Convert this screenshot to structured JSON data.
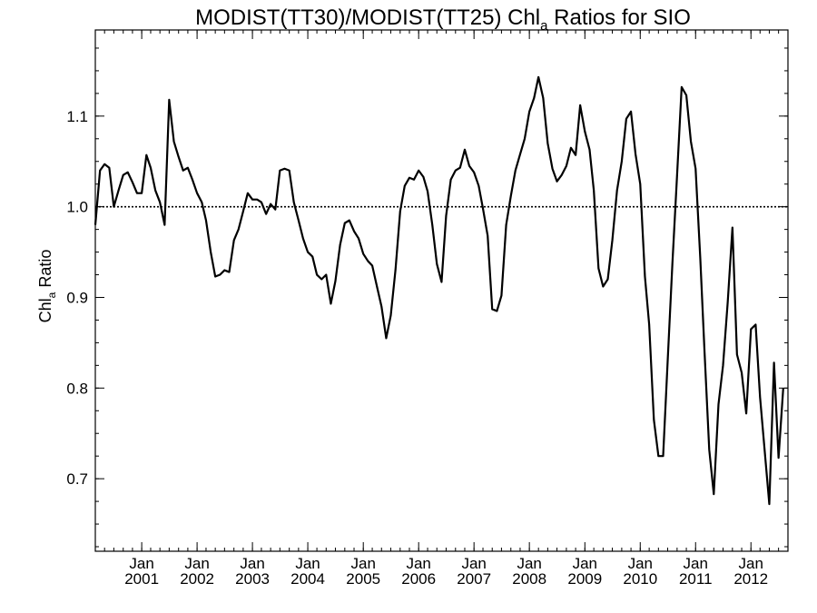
{
  "chart_data": {
    "type": "line",
    "title": {
      "before": "MODIST(TT30)/MODIST(TT25)  Chl",
      "subscript": "a",
      "after": " Ratios for SIO"
    },
    "ylabel": {
      "before": "Chl",
      "subscript": "a",
      "after": " Ratio"
    },
    "xlabel": "",
    "xlim": [
      "2000-03-01",
      "2012-09-01"
    ],
    "ylim": [
      0.62,
      1.195
    ],
    "yticks": [
      0.7,
      0.8,
      0.9,
      1.0,
      1.1
    ],
    "ytick_labels": [
      "0.7",
      "0.8",
      "0.9",
      "1.0",
      "1.1"
    ],
    "xticks": [
      {
        "month": "Jan",
        "year": "2001",
        "date": "2001-01-01"
      },
      {
        "month": "Jan",
        "year": "2002",
        "date": "2002-01-01"
      },
      {
        "month": "Jan",
        "year": "2003",
        "date": "2003-01-01"
      },
      {
        "month": "Jan",
        "year": "2004",
        "date": "2004-01-01"
      },
      {
        "month": "Jan",
        "year": "2005",
        "date": "2005-01-01"
      },
      {
        "month": "Jan",
        "year": "2006",
        "date": "2006-01-01"
      },
      {
        "month": "Jan",
        "year": "2007",
        "date": "2007-01-01"
      },
      {
        "month": "Jan",
        "year": "2008",
        "date": "2008-01-01"
      },
      {
        "month": "Jan",
        "year": "2009",
        "date": "2009-01-01"
      },
      {
        "month": "Jan",
        "year": "2010",
        "date": "2010-01-01"
      },
      {
        "month": "Jan",
        "year": "2011",
        "date": "2011-01-01"
      },
      {
        "month": "Jan",
        "year": "2012",
        "date": "2012-01-01"
      }
    ],
    "reference_line": {
      "y": 1.0,
      "style": "dotted"
    },
    "grid": false,
    "legend": "none",
    "series": [
      {
        "color": "#000000",
        "points": [
          [
            "2000-03-01",
            0.98
          ],
          [
            "2000-04-01",
            1.04
          ],
          [
            "2000-05-01",
            1.047
          ],
          [
            "2000-06-01",
            1.043
          ],
          [
            "2000-07-01",
            1.0
          ],
          [
            "2000-08-01",
            1.018
          ],
          [
            "2000-09-01",
            1.035
          ],
          [
            "2000-10-01",
            1.038
          ],
          [
            "2000-11-01",
            1.027
          ],
          [
            "2000-12-01",
            1.015
          ],
          [
            "2001-01-01",
            1.015
          ],
          [
            "2001-02-01",
            1.057
          ],
          [
            "2001-03-01",
            1.043
          ],
          [
            "2001-04-01",
            1.018
          ],
          [
            "2001-05-01",
            1.005
          ],
          [
            "2001-06-01",
            0.98
          ],
          [
            "2001-07-01",
            1.118
          ],
          [
            "2001-08-01",
            1.072
          ],
          [
            "2001-09-01",
            1.055
          ],
          [
            "2001-10-01",
            1.04
          ],
          [
            "2001-11-01",
            1.043
          ],
          [
            "2001-12-01",
            1.03
          ],
          [
            "2002-01-01",
            1.015
          ],
          [
            "2002-02-01",
            1.005
          ],
          [
            "2002-03-01",
            0.985
          ],
          [
            "2002-04-01",
            0.95
          ],
          [
            "2002-05-01",
            0.923
          ],
          [
            "2002-06-01",
            0.925
          ],
          [
            "2002-07-01",
            0.93
          ],
          [
            "2002-08-01",
            0.928
          ],
          [
            "2002-09-01",
            0.963
          ],
          [
            "2002-10-01",
            0.975
          ],
          [
            "2002-11-01",
            0.995
          ],
          [
            "2002-12-01",
            1.015
          ],
          [
            "2003-01-01",
            1.008
          ],
          [
            "2003-02-01",
            1.008
          ],
          [
            "2003-03-01",
            1.005
          ],
          [
            "2003-04-01",
            0.992
          ],
          [
            "2003-05-01",
            1.003
          ],
          [
            "2003-06-01",
            0.997
          ],
          [
            "2003-07-01",
            1.04
          ],
          [
            "2003-08-01",
            1.042
          ],
          [
            "2003-09-01",
            1.04
          ],
          [
            "2003-10-01",
            1.005
          ],
          [
            "2003-11-01",
            0.985
          ],
          [
            "2003-12-01",
            0.965
          ],
          [
            "2004-01-01",
            0.95
          ],
          [
            "2004-02-01",
            0.945
          ],
          [
            "2004-03-01",
            0.925
          ],
          [
            "2004-04-01",
            0.92
          ],
          [
            "2004-05-01",
            0.925
          ],
          [
            "2004-06-01",
            0.893
          ],
          [
            "2004-07-01",
            0.918
          ],
          [
            "2004-08-01",
            0.958
          ],
          [
            "2004-09-01",
            0.982
          ],
          [
            "2004-10-01",
            0.985
          ],
          [
            "2004-11-01",
            0.973
          ],
          [
            "2004-12-01",
            0.965
          ],
          [
            "2005-01-01",
            0.948
          ],
          [
            "2005-02-01",
            0.94
          ],
          [
            "2005-03-01",
            0.935
          ],
          [
            "2005-04-01",
            0.912
          ],
          [
            "2005-05-01",
            0.89
          ],
          [
            "2005-06-01",
            0.855
          ],
          [
            "2005-07-01",
            0.88
          ],
          [
            "2005-08-01",
            0.93
          ],
          [
            "2005-09-01",
            0.995
          ],
          [
            "2005-10-01",
            1.023
          ],
          [
            "2005-11-01",
            1.032
          ],
          [
            "2005-12-01",
            1.03
          ],
          [
            "2006-01-01",
            1.04
          ],
          [
            "2006-02-01",
            1.033
          ],
          [
            "2006-03-01",
            1.017
          ],
          [
            "2006-04-01",
            0.98
          ],
          [
            "2006-05-01",
            0.937
          ],
          [
            "2006-06-01",
            0.917
          ],
          [
            "2006-07-01",
            0.99
          ],
          [
            "2006-08-01",
            1.03
          ],
          [
            "2006-09-01",
            1.04
          ],
          [
            "2006-10-01",
            1.043
          ],
          [
            "2006-11-01",
            1.063
          ],
          [
            "2006-12-01",
            1.045
          ],
          [
            "2007-01-01",
            1.038
          ],
          [
            "2007-02-01",
            1.023
          ],
          [
            "2007-03-01",
            0.998
          ],
          [
            "2007-04-01",
            0.968
          ],
          [
            "2007-05-01",
            0.887
          ],
          [
            "2007-06-01",
            0.885
          ],
          [
            "2007-07-01",
            0.902
          ],
          [
            "2007-08-01",
            0.98
          ],
          [
            "2007-09-01",
            1.012
          ],
          [
            "2007-10-01",
            1.04
          ],
          [
            "2007-11-01",
            1.058
          ],
          [
            "2007-12-01",
            1.075
          ],
          [
            "2008-01-01",
            1.105
          ],
          [
            "2008-02-01",
            1.12
          ],
          [
            "2008-03-01",
            1.143
          ],
          [
            "2008-04-01",
            1.12
          ],
          [
            "2008-05-01",
            1.07
          ],
          [
            "2008-06-01",
            1.042
          ],
          [
            "2008-07-01",
            1.028
          ],
          [
            "2008-08-01",
            1.035
          ],
          [
            "2008-09-01",
            1.045
          ],
          [
            "2008-10-01",
            1.065
          ],
          [
            "2008-11-01",
            1.057
          ],
          [
            "2008-12-01",
            1.112
          ],
          [
            "2009-01-01",
            1.083
          ],
          [
            "2009-02-01",
            1.063
          ],
          [
            "2009-03-01",
            1.018
          ],
          [
            "2009-04-01",
            0.932
          ],
          [
            "2009-05-01",
            0.912
          ],
          [
            "2009-06-01",
            0.92
          ],
          [
            "2009-07-01",
            0.963
          ],
          [
            "2009-08-01",
            1.018
          ],
          [
            "2009-09-01",
            1.05
          ],
          [
            "2009-10-01",
            1.097
          ],
          [
            "2009-11-01",
            1.105
          ],
          [
            "2009-12-01",
            1.058
          ],
          [
            "2010-01-01",
            1.025
          ],
          [
            "2010-02-01",
            0.923
          ],
          [
            "2010-03-01",
            0.87
          ],
          [
            "2010-04-01",
            0.765
          ],
          [
            "2010-05-01",
            0.725
          ],
          [
            "2010-06-01",
            0.725
          ],
          [
            "2010-07-01",
            0.83
          ],
          [
            "2010-08-01",
            0.937
          ],
          [
            "2010-09-01",
            1.035
          ],
          [
            "2010-10-01",
            1.132
          ],
          [
            "2010-11-01",
            1.123
          ],
          [
            "2010-12-01",
            1.072
          ],
          [
            "2011-01-01",
            1.042
          ],
          [
            "2011-02-01",
            0.943
          ],
          [
            "2011-03-01",
            0.84
          ],
          [
            "2011-04-01",
            0.732
          ],
          [
            "2011-05-01",
            0.683
          ],
          [
            "2011-06-01",
            0.782
          ],
          [
            "2011-07-01",
            0.825
          ],
          [
            "2011-08-01",
            0.895
          ],
          [
            "2011-09-01",
            0.977
          ],
          [
            "2011-10-01",
            0.837
          ],
          [
            "2011-11-01",
            0.817
          ],
          [
            "2011-12-01",
            0.772
          ],
          [
            "2012-01-01",
            0.865
          ],
          [
            "2012-02-01",
            0.87
          ],
          [
            "2012-03-01",
            0.79
          ],
          [
            "2012-04-01",
            0.73
          ],
          [
            "2012-05-01",
            0.672
          ],
          [
            "2012-06-01",
            0.828
          ],
          [
            "2012-07-01",
            0.723
          ],
          [
            "2012-08-01",
            0.8
          ]
        ]
      }
    ]
  }
}
